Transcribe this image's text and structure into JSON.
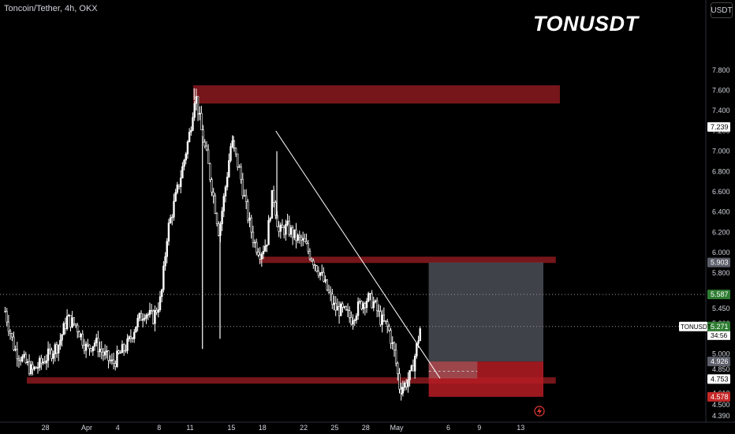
{
  "header": {
    "symbol_line": "Toncoin/Tether, 4h, OKX",
    "chart_title": "TONUSDT",
    "currency_badge": "USDT"
  },
  "colors": {
    "background": "#000000",
    "candle": "#ffffff",
    "zone_red": "#8b1a1f",
    "stop_zone": "#b71c24",
    "target_zone": "#4a4d55",
    "label_green": "#2e7d32",
    "label_red": "#c62828",
    "label_gray": "#5d606b",
    "label_white": "#ffffff",
    "axis_text": "#d1d4dc"
  },
  "chart_data": {
    "type": "candlestick",
    "title": "TONUSDT",
    "timeframe": "4h",
    "exchange": "OKX",
    "ylim": [
      4.39,
      7.9
    ],
    "y_ticks": [
      {
        "v": 7.8,
        "t": "7.800"
      },
      {
        "v": 7.6,
        "t": "7.600"
      },
      {
        "v": 7.4,
        "t": "7.400"
      },
      {
        "v": 7.2,
        "t": "7.200"
      },
      {
        "v": 7.0,
        "t": "7.000"
      },
      {
        "v": 6.8,
        "t": "6.800"
      },
      {
        "v": 6.6,
        "t": "6.600"
      },
      {
        "v": 6.4,
        "t": "6.400"
      },
      {
        "v": 6.2,
        "t": "6.200"
      },
      {
        "v": 6.0,
        "t": "6.000"
      },
      {
        "v": 5.8,
        "t": "5.800"
      },
      {
        "v": 5.6,
        "t": "5.600"
      },
      {
        "v": 5.45,
        "t": "5.450"
      },
      {
        "v": 5.3,
        "t": "5.300"
      },
      {
        "v": 5.0,
        "t": "5.000"
      },
      {
        "v": 4.85,
        "t": "4.850"
      },
      {
        "v": 4.61,
        "t": "4.610"
      },
      {
        "v": 4.5,
        "t": "4.500"
      },
      {
        "v": 4.39,
        "t": "4.390"
      }
    ],
    "x_ticks": [
      {
        "label": "28",
        "day": -4
      },
      {
        "label": "Apr",
        "day": 0
      },
      {
        "label": "4",
        "day": 3
      },
      {
        "label": "8",
        "day": 7
      },
      {
        "label": "11",
        "day": 10
      },
      {
        "label": "15",
        "day": 14
      },
      {
        "label": "18",
        "day": 17
      },
      {
        "label": "22",
        "day": 21
      },
      {
        "label": "25",
        "day": 24
      },
      {
        "label": "28",
        "day": 27
      },
      {
        "label": "May",
        "day": 30
      },
      {
        "label": "6",
        "day": 35
      },
      {
        "label": "9",
        "day": 38
      },
      {
        "label": "13",
        "day": 42
      }
    ],
    "price_path": [
      [
        -7.9,
        5.42
      ],
      [
        -7.0,
        5.05
      ],
      [
        -6.0,
        4.92
      ],
      [
        -5.3,
        4.83
      ],
      [
        -4.5,
        4.9
      ],
      [
        -3.6,
        5.0
      ],
      [
        -2.7,
        5.1
      ],
      [
        -1.9,
        5.35
      ],
      [
        -1.0,
        5.28
      ],
      [
        0.0,
        5.05
      ],
      [
        0.8,
        5.12
      ],
      [
        1.6,
        5.0
      ],
      [
        2.5,
        4.9
      ],
      [
        3.2,
        5.0
      ],
      [
        4.0,
        5.1
      ],
      [
        4.8,
        5.3
      ],
      [
        5.6,
        5.42
      ],
      [
        6.4,
        5.35
      ],
      [
        7.2,
        5.55
      ],
      [
        7.8,
        6.2
      ],
      [
        8.5,
        6.5
      ],
      [
        9.2,
        6.8
      ],
      [
        10.0,
        7.2
      ],
      [
        10.5,
        7.58
      ],
      [
        11.1,
        7.2
      ],
      [
        11.6,
        6.95
      ],
      [
        12.2,
        6.6
      ],
      [
        12.8,
        6.2
      ],
      [
        13.5,
        6.7
      ],
      [
        14.0,
        7.1
      ],
      [
        14.8,
        6.8
      ],
      [
        15.5,
        6.4
      ],
      [
        16.2,
        6.1
      ],
      [
        16.8,
        6.0
      ],
      [
        17.4,
        6.1
      ],
      [
        18.0,
        6.6
      ],
      [
        18.6,
        6.2
      ],
      [
        19.4,
        6.25
      ],
      [
        20.2,
        6.15
      ],
      [
        21.0,
        6.1
      ],
      [
        21.8,
        5.95
      ],
      [
        22.6,
        5.8
      ],
      [
        23.4,
        5.6
      ],
      [
        24.0,
        5.45
      ],
      [
        24.8,
        5.42
      ],
      [
        25.6,
        5.35
      ],
      [
        26.4,
        5.48
      ],
      [
        27.2,
        5.55
      ],
      [
        27.8,
        5.5
      ],
      [
        28.4,
        5.35
      ],
      [
        29.2,
        5.25
      ],
      [
        29.8,
        5.0
      ],
      [
        30.3,
        4.66
      ],
      [
        30.8,
        4.7
      ],
      [
        31.4,
        4.8
      ],
      [
        31.9,
        5.05
      ],
      [
        32.3,
        5.27
      ]
    ],
    "spikes": [
      {
        "day": 11.2,
        "low": 5.05
      },
      {
        "day": 12.9,
        "low": 5.15
      },
      {
        "day": 10.4,
        "high": 7.62
      },
      {
        "day": 14.2,
        "high": 7.15
      },
      {
        "day": 18.4,
        "high": 7.0
      },
      {
        "day": 30.5,
        "low": 4.6
      }
    ],
    "zones": [
      {
        "name": "resistance-zone-top",
        "from_day": 10.3,
        "to_day": 45.8,
        "high": 7.65,
        "low": 7.47
      },
      {
        "name": "resistance-zone-mid",
        "from_day": 16.7,
        "to_day": 45.4,
        "high": 5.96,
        "low": 5.9
      },
      {
        "name": "support-zone",
        "from_day": -5.8,
        "to_day": 45.4,
        "high": 4.77,
        "low": 4.72
      }
    ],
    "trendline": {
      "from": [
        18.3,
        7.2
      ],
      "to": [
        34.2,
        4.76
      ]
    },
    "position": {
      "from_day": 33.1,
      "to_day": 44.2,
      "target": 5.903,
      "entry": 4.926,
      "stop": 4.578,
      "entry_box_to_day": 37.8
    },
    "levels": [
      {
        "name": "last-price-line",
        "v": 5.271
      },
      {
        "name": "dotted-level",
        "v": 5.587
      }
    ],
    "price_labels": [
      {
        "v": 7.239,
        "t": "7.239",
        "style": "white"
      },
      {
        "v": 5.903,
        "t": "5.903",
        "style": "gray"
      },
      {
        "v": 5.587,
        "t": "5.587",
        "style": "green"
      },
      {
        "v": 5.271,
        "t": "5.271",
        "style": "green"
      },
      {
        "v": 4.926,
        "t": "4.926",
        "style": "gray"
      },
      {
        "v": 4.753,
        "t": "4.753",
        "style": "white"
      },
      {
        "v": 4.578,
        "t": "4.578",
        "style": "red"
      }
    ],
    "last_price": {
      "label": "TONUSDT",
      "value": "5.271",
      "countdown": "34:56"
    }
  }
}
